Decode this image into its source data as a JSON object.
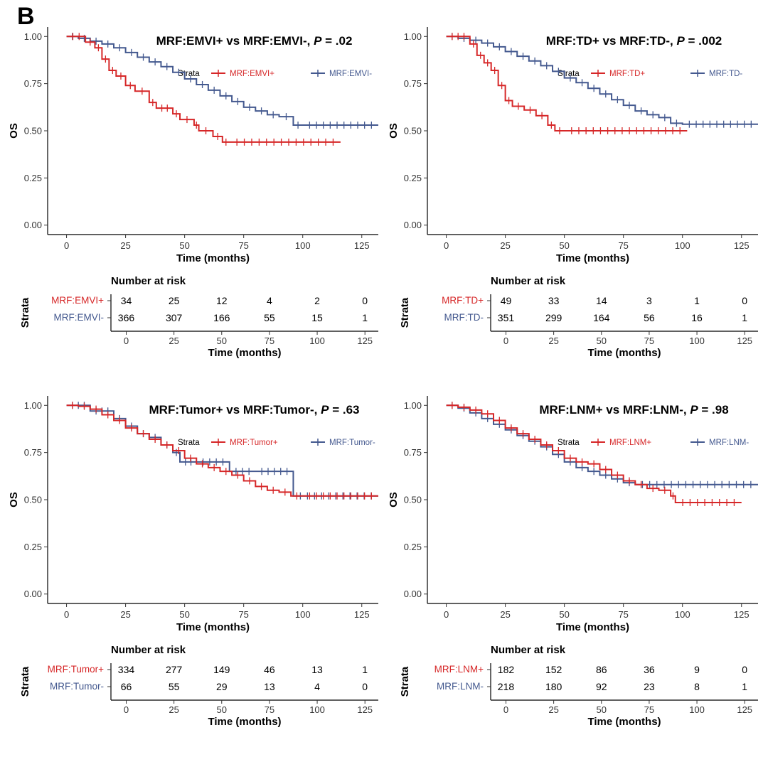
{
  "figure_label": "B",
  "colors": {
    "plus": "#D62728",
    "minus": "#44598F",
    "axis": "#000000",
    "tick": "#333333"
  },
  "chart_data": [
    {
      "type": "line",
      "subtype": "kaplan-meier",
      "title_prefix": "MRF:EMVI+ vs MRF:EMVI-, ",
      "p_label": "P",
      "p_value": " = .02",
      "xlabel": "Time (months)",
      "ylabel": "OS",
      "xlim": [
        -8,
        132
      ],
      "ylim": [
        -0.05,
        1.05
      ],
      "x_ticks": [
        0,
        25,
        50,
        75,
        100,
        125
      ],
      "x_tick_labels": [
        "0",
        "25",
        "50",
        "75",
        "100",
        "125"
      ],
      "y_ticks": [
        0,
        0.25,
        0.5,
        0.75,
        1.0
      ],
      "y_tick_labels": [
        "0.00",
        "0.25",
        "0.50",
        "0.75",
        "1.00"
      ],
      "legend_title": "Strata",
      "risk_title": "Number at risk",
      "risk_ylabel": "Strata",
      "series": [
        {
          "name": "MRF:EMVI+",
          "color": "#D62728",
          "x": [
            0,
            8,
            12,
            15,
            18,
            21,
            25,
            29,
            35,
            38,
            45,
            48,
            54,
            56,
            62,
            66,
            69,
            116
          ],
          "y": [
            1.0,
            0.97,
            0.94,
            0.88,
            0.82,
            0.79,
            0.74,
            0.71,
            0.65,
            0.62,
            0.59,
            0.56,
            0.53,
            0.5,
            0.47,
            0.44,
            0.44,
            0.44
          ],
          "risk": [
            34,
            25,
            12,
            4,
            2,
            0
          ]
        },
        {
          "name": "MRF:EMVI-",
          "color": "#44598F",
          "x": [
            0,
            5,
            10,
            15,
            20,
            25,
            30,
            35,
            40,
            45,
            50,
            55,
            60,
            65,
            70,
            75,
            80,
            85,
            90,
            96,
            100,
            132
          ],
          "y": [
            1.0,
            0.99,
            0.975,
            0.96,
            0.94,
            0.915,
            0.89,
            0.865,
            0.84,
            0.81,
            0.775,
            0.745,
            0.715,
            0.685,
            0.655,
            0.625,
            0.605,
            0.585,
            0.575,
            0.53,
            0.53,
            0.53
          ],
          "risk": [
            366,
            307,
            166,
            55,
            15,
            1
          ]
        }
      ]
    },
    {
      "type": "line",
      "subtype": "kaplan-meier",
      "title_prefix": "MRF:TD+ vs MRF:TD-, ",
      "p_label": "P",
      "p_value": " = .002",
      "xlabel": "Time (months)",
      "ylabel": "OS",
      "xlim": [
        -8,
        132
      ],
      "ylim": [
        -0.05,
        1.05
      ],
      "x_ticks": [
        0,
        25,
        50,
        75,
        100,
        125
      ],
      "x_tick_labels": [
        "0",
        "25",
        "50",
        "75",
        "100",
        "125"
      ],
      "y_ticks": [
        0,
        0.25,
        0.5,
        0.75,
        1.0
      ],
      "y_tick_labels": [
        "0.00",
        "0.25",
        "0.50",
        "0.75",
        "1.00"
      ],
      "legend_title": "Strata",
      "risk_title": "Number at risk",
      "risk_ylabel": "Strata",
      "series": [
        {
          "name": "MRF:TD+",
          "color": "#D62728",
          "x": [
            0,
            10,
            13,
            16,
            19,
            22,
            25,
            28,
            33,
            38,
            43,
            46,
            50,
            102
          ],
          "y": [
            1.0,
            0.96,
            0.9,
            0.86,
            0.82,
            0.74,
            0.66,
            0.63,
            0.61,
            0.58,
            0.53,
            0.5,
            0.5,
            0.5
          ],
          "risk": [
            49,
            33,
            14,
            3,
            1,
            0
          ]
        },
        {
          "name": "MRF:TD-",
          "color": "#44598F",
          "x": [
            0,
            5,
            10,
            15,
            20,
            25,
            30,
            35,
            40,
            45,
            50,
            55,
            60,
            65,
            70,
            75,
            80,
            85,
            90,
            95,
            100,
            132
          ],
          "y": [
            1.0,
            0.99,
            0.98,
            0.965,
            0.945,
            0.92,
            0.895,
            0.87,
            0.845,
            0.815,
            0.78,
            0.755,
            0.725,
            0.695,
            0.665,
            0.635,
            0.605,
            0.585,
            0.57,
            0.54,
            0.535,
            0.535
          ],
          "risk": [
            351,
            299,
            164,
            56,
            16,
            1
          ]
        }
      ]
    },
    {
      "type": "line",
      "subtype": "kaplan-meier",
      "title_prefix": "MRF:Tumor+ vs MRF:Tumor-, ",
      "p_label": "P",
      "p_value": " = .63",
      "xlabel": "Time (months)",
      "ylabel": "OS",
      "xlim": [
        -8,
        132
      ],
      "ylim": [
        -0.05,
        1.05
      ],
      "x_ticks": [
        0,
        25,
        50,
        75,
        100,
        125
      ],
      "x_tick_labels": [
        "0",
        "25",
        "50",
        "75",
        "100",
        "125"
      ],
      "y_ticks": [
        0,
        0.25,
        0.5,
        0.75,
        1.0
      ],
      "y_tick_labels": [
        "0.00",
        "0.25",
        "0.50",
        "0.75",
        "1.00"
      ],
      "legend_title": "Strata",
      "risk_title": "Number at risk",
      "risk_ylabel": "Strata",
      "series": [
        {
          "name": "MRF:Tumor+",
          "color": "#D62728",
          "x": [
            0,
            5,
            10,
            15,
            20,
            25,
            30,
            35,
            40,
            45,
            50,
            55,
            60,
            65,
            70,
            75,
            80,
            85,
            90,
            95,
            100,
            132
          ],
          "y": [
            1.0,
            0.995,
            0.98,
            0.95,
            0.92,
            0.88,
            0.85,
            0.82,
            0.79,
            0.76,
            0.72,
            0.69,
            0.67,
            0.65,
            0.63,
            0.6,
            0.57,
            0.55,
            0.54,
            0.52,
            0.52,
            0.52
          ],
          "risk": [
            334,
            277,
            149,
            46,
            13,
            1
          ]
        },
        {
          "name": "MRF:Tumor-",
          "color": "#44598F",
          "x": [
            0,
            10,
            20,
            25,
            30,
            35,
            40,
            45,
            48,
            55,
            69,
            80,
            96,
            132
          ],
          "y": [
            1.0,
            0.97,
            0.93,
            0.89,
            0.85,
            0.83,
            0.79,
            0.75,
            0.7,
            0.7,
            0.65,
            0.65,
            0.52,
            0.52
          ],
          "risk": [
            66,
            55,
            29,
            13,
            4,
            0
          ]
        }
      ]
    },
    {
      "type": "line",
      "subtype": "kaplan-meier",
      "title_prefix": "MRF:LNM+ vs MRF:LNM-, ",
      "p_label": "P",
      "p_value": " = .98",
      "xlabel": "Time (months)",
      "ylabel": "OS",
      "xlim": [
        -8,
        132
      ],
      "ylim": [
        -0.05,
        1.05
      ],
      "x_ticks": [
        0,
        25,
        50,
        75,
        100,
        125
      ],
      "x_tick_labels": [
        "0",
        "25",
        "50",
        "75",
        "100",
        "125"
      ],
      "y_ticks": [
        0,
        0.25,
        0.5,
        0.75,
        1.0
      ],
      "y_tick_labels": [
        "0.00",
        "0.25",
        "0.50",
        "0.75",
        "1.00"
      ],
      "legend_title": "Strata",
      "risk_title": "Number at risk",
      "risk_ylabel": "Strata",
      "series": [
        {
          "name": "MRF:LNM+",
          "color": "#D62728",
          "x": [
            0,
            5,
            10,
            15,
            20,
            25,
            30,
            35,
            40,
            45,
            50,
            55,
            60,
            65,
            70,
            75,
            80,
            85,
            90,
            95,
            97,
            125
          ],
          "y": [
            1.0,
            0.99,
            0.975,
            0.955,
            0.92,
            0.88,
            0.85,
            0.82,
            0.79,
            0.76,
            0.72,
            0.7,
            0.69,
            0.66,
            0.63,
            0.6,
            0.58,
            0.56,
            0.55,
            0.52,
            0.485,
            0.485
          ],
          "risk": [
            182,
            152,
            86,
            36,
            9,
            0
          ]
        },
        {
          "name": "MRF:LNM-",
          "color": "#44598F",
          "x": [
            0,
            5,
            10,
            15,
            20,
            25,
            30,
            35,
            40,
            45,
            50,
            55,
            60,
            65,
            70,
            75,
            80,
            132
          ],
          "y": [
            1.0,
            0.985,
            0.96,
            0.93,
            0.9,
            0.87,
            0.84,
            0.81,
            0.78,
            0.74,
            0.7,
            0.67,
            0.65,
            0.63,
            0.61,
            0.59,
            0.58,
            0.58
          ],
          "risk": [
            218,
            180,
            92,
            23,
            8,
            1
          ]
        }
      ]
    }
  ]
}
